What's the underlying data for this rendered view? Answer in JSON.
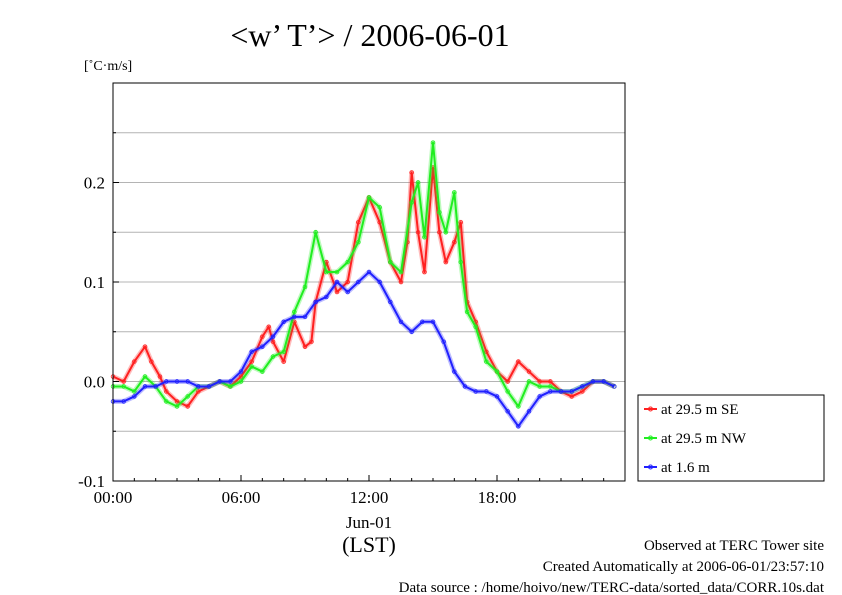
{
  "chart_data": {
    "type": "line",
    "title": "<w’ T’> / 2006-06-01",
    "ylabel": "[˚C·m/s]",
    "xlabel": "(LST)",
    "x_unit": "hours (LST) on 2006-06-01",
    "xlim": [
      0,
      24
    ],
    "ylim": [
      -0.1,
      0.3
    ],
    "x_ticks": [
      {
        "value": 0,
        "label": "00:00"
      },
      {
        "value": 6,
        "label": "06:00"
      },
      {
        "value": 12,
        "label": "12:00"
      },
      {
        "value": 18,
        "label": "18:00"
      }
    ],
    "x_date_label": "Jun-01",
    "y_ticks": [
      {
        "value": -0.1,
        "label": "-0.1"
      },
      {
        "value": 0.0,
        "label": "0.0"
      },
      {
        "value": 0.1,
        "label": "0.1"
      },
      {
        "value": 0.2,
        "label": "0.2"
      }
    ],
    "grid": "horizontal",
    "legend_position": "right",
    "series": [
      {
        "name": "at 29.5 m SE",
        "color": "#ff2020",
        "x": [
          0,
          0.5,
          1.0,
          1.5,
          1.8,
          2.2,
          2.5,
          3.0,
          3.5,
          4.0,
          4.5,
          5.0,
          5.5,
          6.0,
          6.5,
          7.0,
          7.3,
          7.5,
          8.0,
          8.5,
          9.0,
          9.3,
          9.5,
          10.0,
          10.5,
          11.0,
          11.5,
          12.0,
          12.5,
          13.0,
          13.5,
          13.8,
          14.0,
          14.3,
          14.6,
          15.0,
          15.3,
          15.6,
          16.0,
          16.3,
          16.6,
          17.0,
          17.5,
          18.0,
          18.5,
          19.0,
          19.5,
          20.0,
          20.5,
          21.0,
          21.5,
          22.0,
          22.5,
          23.0,
          23.5
        ],
        "values": [
          0.005,
          0.0,
          0.02,
          0.035,
          0.02,
          0.005,
          -0.01,
          -0.02,
          -0.025,
          -0.01,
          -0.005,
          0.0,
          -0.005,
          0.005,
          0.02,
          0.045,
          0.055,
          0.04,
          0.02,
          0.06,
          0.035,
          0.04,
          0.08,
          0.12,
          0.09,
          0.1,
          0.16,
          0.185,
          0.16,
          0.12,
          0.1,
          0.14,
          0.21,
          0.15,
          0.11,
          0.215,
          0.15,
          0.12,
          0.14,
          0.16,
          0.08,
          0.06,
          0.03,
          0.01,
          0.0,
          0.02,
          0.01,
          0.0,
          0.0,
          -0.01,
          -0.015,
          -0.01,
          0.0,
          0.0,
          -0.005
        ]
      },
      {
        "name": "at 29.5 m NW",
        "color": "#20ee20",
        "x": [
          0,
          0.5,
          1.0,
          1.5,
          2.0,
          2.5,
          3.0,
          3.5,
          4.0,
          4.5,
          5.0,
          5.5,
          6.0,
          6.5,
          7.0,
          7.5,
          8.0,
          8.5,
          9.0,
          9.5,
          10.0,
          10.5,
          11.0,
          11.5,
          12.0,
          12.5,
          13.0,
          13.5,
          14.0,
          14.3,
          14.6,
          15.0,
          15.3,
          15.6,
          16.0,
          16.3,
          16.6,
          17.0,
          17.5,
          18.0,
          18.5,
          19.0,
          19.5,
          20.0,
          20.5,
          21.0,
          21.5,
          22.0,
          22.5,
          23.0,
          23.5
        ],
        "values": [
          -0.005,
          -0.005,
          -0.01,
          0.005,
          -0.005,
          -0.02,
          -0.025,
          -0.015,
          -0.005,
          -0.005,
          0.0,
          -0.005,
          0.0,
          0.015,
          0.01,
          0.025,
          0.03,
          0.07,
          0.095,
          0.15,
          0.11,
          0.11,
          0.12,
          0.14,
          0.185,
          0.175,
          0.12,
          0.11,
          0.18,
          0.2,
          0.145,
          0.24,
          0.17,
          0.15,
          0.19,
          0.12,
          0.07,
          0.055,
          0.02,
          0.01,
          -0.01,
          -0.025,
          0.0,
          -0.005,
          -0.005,
          -0.01,
          -0.01,
          -0.005,
          0.0,
          0.0,
          -0.005
        ]
      },
      {
        "name": "at 1.6 m",
        "color": "#2020ff",
        "x": [
          0,
          0.5,
          1.0,
          1.5,
          2.0,
          2.5,
          3.0,
          3.5,
          4.0,
          4.5,
          5.0,
          5.5,
          6.0,
          6.5,
          7.0,
          7.5,
          8.0,
          8.5,
          9.0,
          9.5,
          10.0,
          10.5,
          11.0,
          11.5,
          12.0,
          12.5,
          13.0,
          13.5,
          14.0,
          14.5,
          15.0,
          15.5,
          16.0,
          16.5,
          17.0,
          17.5,
          18.0,
          18.5,
          19.0,
          19.5,
          20.0,
          20.5,
          21.0,
          21.5,
          22.0,
          22.5,
          23.0,
          23.5
        ],
        "values": [
          -0.02,
          -0.02,
          -0.015,
          -0.005,
          -0.005,
          0.0,
          0.0,
          0.0,
          -0.005,
          -0.005,
          0.0,
          0.0,
          0.01,
          0.03,
          0.035,
          0.045,
          0.06,
          0.065,
          0.065,
          0.08,
          0.085,
          0.1,
          0.09,
          0.1,
          0.11,
          0.1,
          0.08,
          0.06,
          0.05,
          0.06,
          0.06,
          0.04,
          0.01,
          -0.005,
          -0.01,
          -0.01,
          -0.015,
          -0.03,
          -0.045,
          -0.03,
          -0.015,
          -0.01,
          -0.01,
          -0.01,
          -0.005,
          0.0,
          0.0,
          -0.005
        ]
      }
    ]
  },
  "footer": {
    "line1": "Observed at TERC Tower site",
    "line2": "Created Automatically at 2006-06-01/23:57:10",
    "line3": "Data source : /home/hoivo/new/TERC-data/sorted_data/CORR.10s.dat"
  }
}
